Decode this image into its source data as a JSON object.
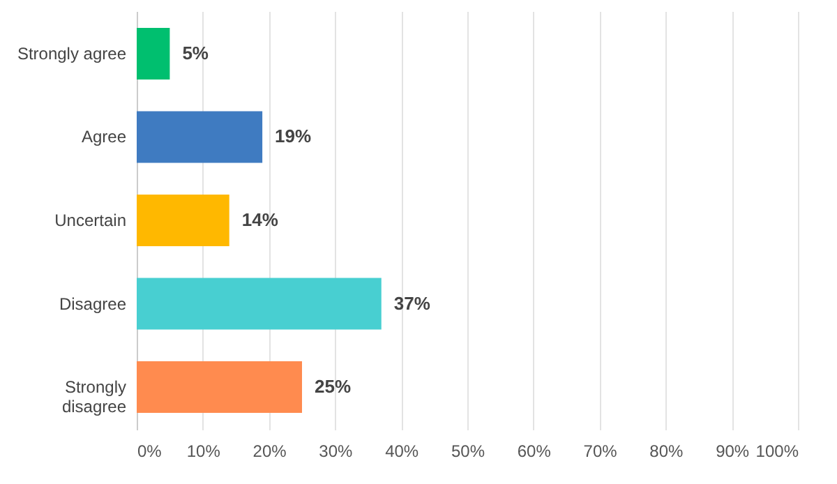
{
  "chart_data": {
    "type": "bar",
    "orientation": "horizontal",
    "categories": [
      "Strongly agree",
      "Agree",
      "Uncertain",
      "Disagree",
      "Strongly disagree"
    ],
    "values": [
      5,
      19,
      14,
      37,
      25
    ],
    "colors": [
      "#00bf6f",
      "#3f7bc1",
      "#ffb800",
      "#48cfd1",
      "#ff8b4f"
    ],
    "value_labels": [
      "5%",
      "19%",
      "14%",
      "37%",
      "25%"
    ],
    "xlim": [
      0,
      100
    ],
    "xticks": [
      {
        "value": 0,
        "label": "0%"
      },
      {
        "value": 10,
        "label": "10%"
      },
      {
        "value": 20,
        "label": "20%"
      },
      {
        "value": 30,
        "label": "30%"
      },
      {
        "value": 40,
        "label": "40%"
      },
      {
        "value": 50,
        "label": "50%"
      },
      {
        "value": 60,
        "label": "60%"
      },
      {
        "value": 70,
        "label": "70%"
      },
      {
        "value": 80,
        "label": "80%"
      },
      {
        "value": 90,
        "label": "90%"
      },
      {
        "value": 100,
        "label": "100%"
      }
    ],
    "grid": "x"
  }
}
